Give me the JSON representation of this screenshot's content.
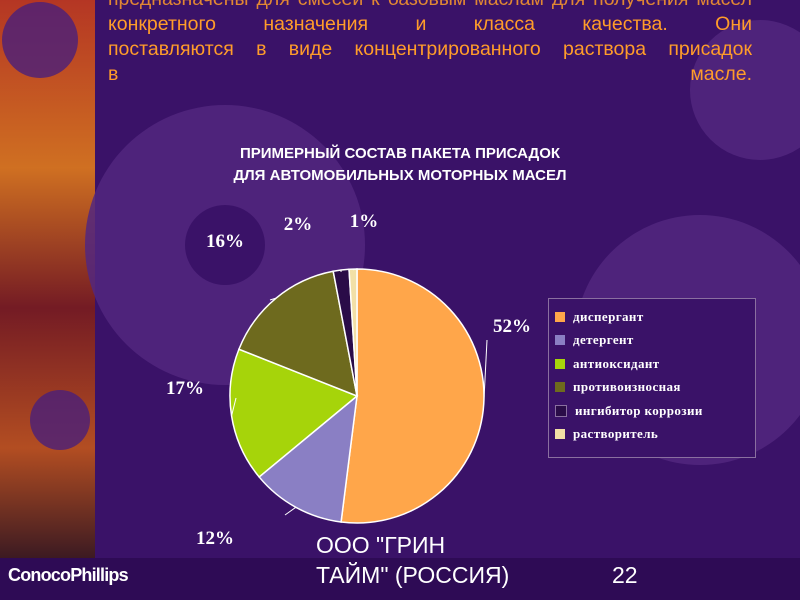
{
  "intro": {
    "line0": "предназначены для смесей к базовым маслам для получения масел",
    "line1": "конкретного назначения и класса качества. Они",
    "line2": "поставляются в виде концентрированного раствора присадок",
    "line3": "в масле."
  },
  "chart_data": {
    "type": "pie",
    "title": "ПРИМЕРНЫЙ СОСТАВ ПАКЕТА ПРИСАДОК ДЛЯ АВТОМОБИЛЬНЫХ МОТОРНЫХ МАСЕЛ",
    "title_line1": "ПРИМЕРНЫЙ СОСТАВ ПАКЕТА ПРИСАДОК",
    "title_line2": "ДЛЯ АВТОМОБИЛЬНЫХ МОТОРНЫХ МАСЕЛ",
    "categories": [
      "диспергант",
      "детергент",
      "антиоксидант",
      "противоизносная",
      "ингибитор коррозии",
      "растворитель"
    ],
    "values": [
      52,
      12,
      17,
      16,
      2,
      1
    ],
    "labels": [
      "52%",
      "12%",
      "17%",
      "16%",
      "2%",
      "1%"
    ],
    "colors": [
      "#ffa64a",
      "#8a7fc4",
      "#a6d40a",
      "#6e6a1e",
      "#2a0c48",
      "#f2e0a6"
    ],
    "legend_position": "right"
  },
  "footer": {
    "logo": "ConocoPhillips",
    "company_line1": "ООО \"ГРИН",
    "company_line2": "ТАЙМ\" (РОССИЯ)",
    "page_number": "22"
  }
}
